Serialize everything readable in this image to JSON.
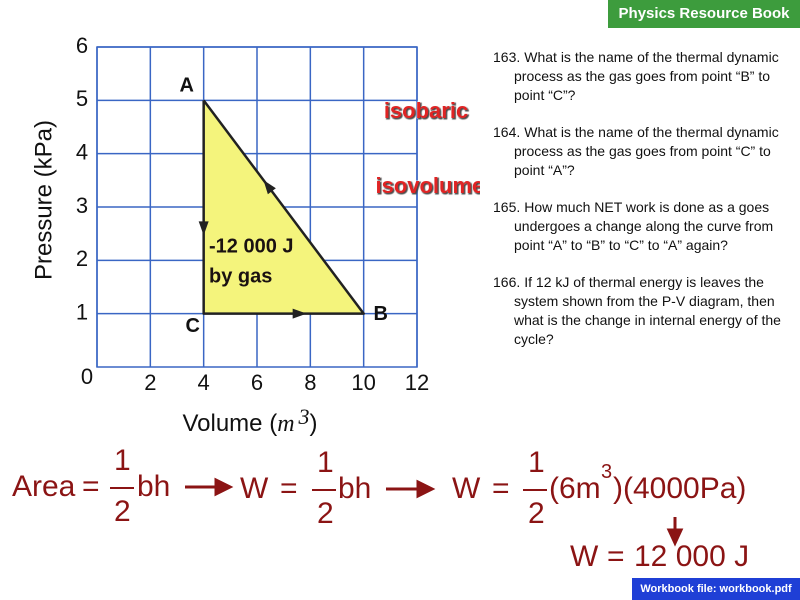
{
  "header": {
    "title": "Physics Resource Book"
  },
  "chart_data": {
    "type": "line",
    "y_label": "Pressure (kPa)",
    "x_label": {
      "text": "Volume (",
      "unit": "m",
      "exponent": "3",
      "close": ")"
    },
    "xlim": [
      0,
      12
    ],
    "ylim": [
      0,
      6
    ],
    "xticks": [
      0,
      2,
      4,
      6,
      8,
      10,
      12
    ],
    "yticks": [
      1,
      2,
      3,
      4,
      5,
      6
    ],
    "grid": true,
    "grid_color": "#3a66c4",
    "series": [
      {
        "color": "#f4f47c",
        "x": [
          4,
          4,
          10,
          4
        ],
        "values": [
          5,
          1,
          1,
          5
        ],
        "point_labels": [
          "A",
          "C",
          "B",
          null
        ]
      }
    ],
    "process_labels": [
      "isobaric",
      "isovolumetric"
    ],
    "work_label": [
      "-12 000 J",
      "by gas"
    ]
  },
  "questions": [
    {
      "number": "163.",
      "text": "What is the name of the thermal dynamic process as the gas goes from point “B” to point “C”?"
    },
    {
      "number": "164.",
      "text": "What is the name of the thermal dynamic process as the gas goes from point “C” to point “A”?"
    },
    {
      "number": "165.",
      "text": "How much NET work is done as a goes undergoes a change along the curve from point “A” to “B” to “C” to “A” again?"
    },
    {
      "number": "166.",
      "text": "If 12 kJ of thermal energy is leaves the system shown from the P-V diagram, then what is the change in internal energy of the cycle?"
    }
  ],
  "equations": [
    {
      "lhs": "Area",
      "op": "=",
      "num": "1",
      "den": "2",
      "rhs": "bh"
    },
    {
      "lhs": "W",
      "op": "=",
      "num": "1",
      "den": "2",
      "rhs": "bh"
    },
    {
      "lhs": "W",
      "op": "=",
      "num": "1",
      "den": "2",
      "rhs": "(6m",
      "rhs_exp": "3",
      "rhs_tail": ")(4000Pa)"
    }
  ],
  "result": {
    "lhs": "W",
    "op": "=",
    "rhs": "12 000 J"
  },
  "footer": "Workbook file: workbook.pdf"
}
